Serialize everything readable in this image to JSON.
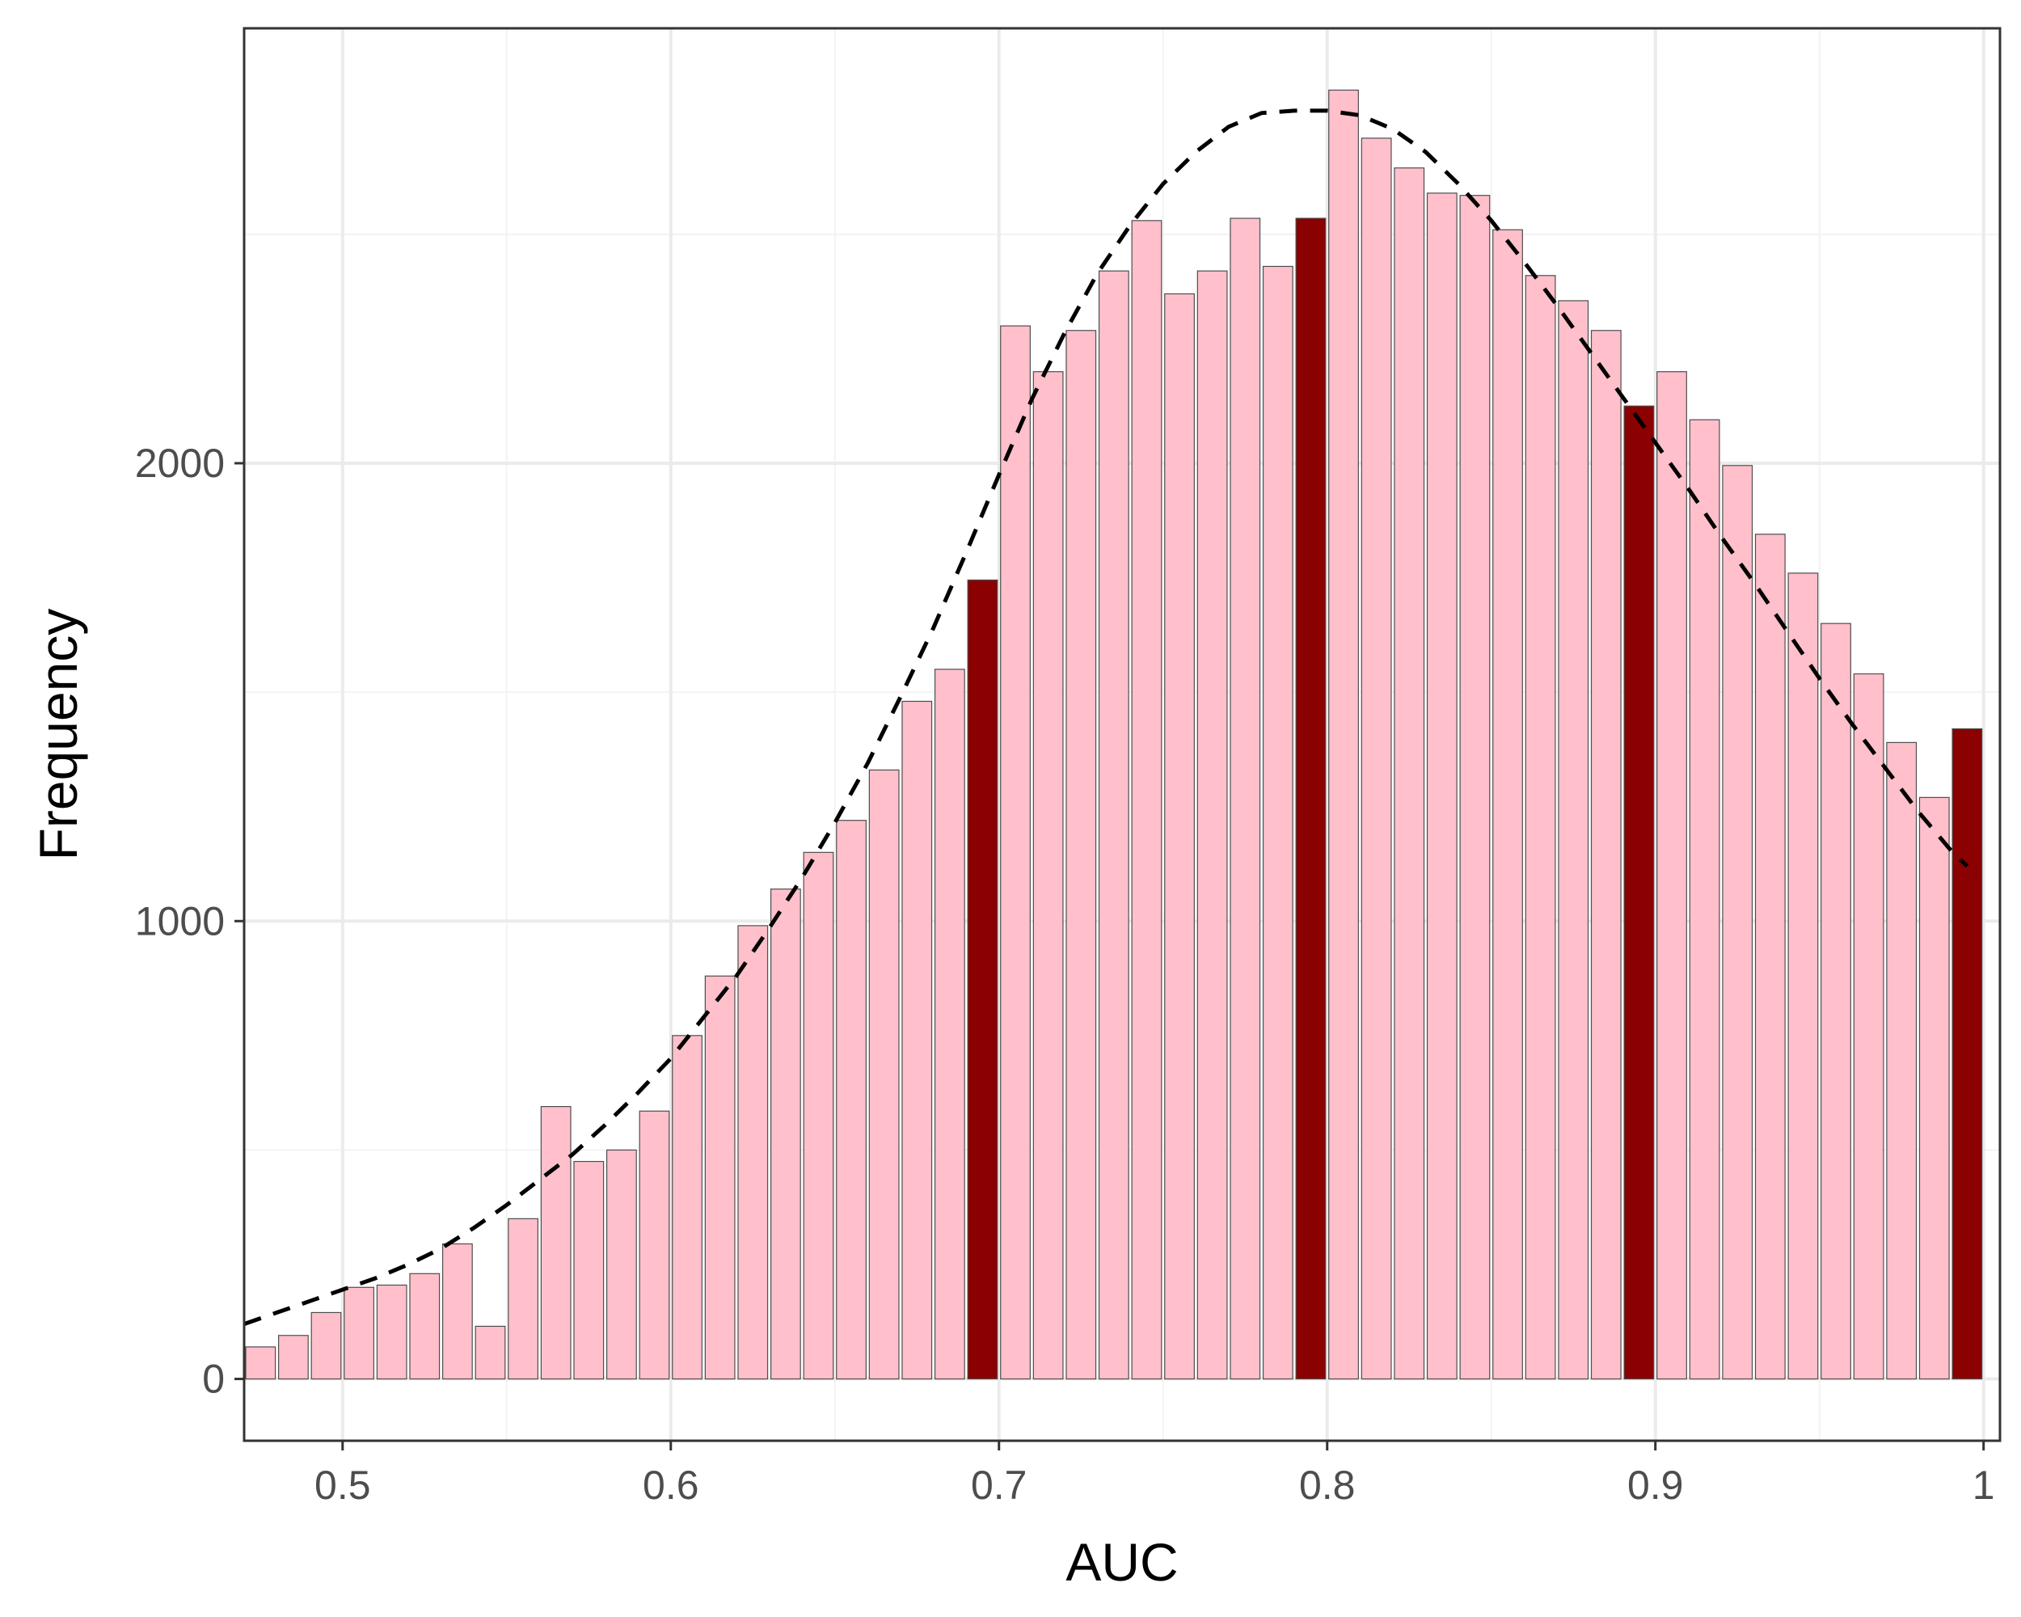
{
  "chart_data": {
    "type": "bar",
    "xlabel": "AUC",
    "ylabel": "Frequency",
    "xlim": [
      0.47,
      1.005
    ],
    "ylim": [
      -135,
      2950
    ],
    "x_ticks": [
      0.5,
      0.6,
      0.7,
      0.8,
      0.9,
      1.0
    ],
    "x_tick_labels": [
      "0.5",
      "0.6",
      "0.7",
      "0.8",
      "0.9",
      "1"
    ],
    "y_ticks": [
      0,
      1000,
      2000
    ],
    "y_tick_labels": [
      "0",
      "1000",
      "2000"
    ],
    "grid": true,
    "legend": "none",
    "bin_width": 0.01,
    "bins": [
      {
        "x": 0.475,
        "value": 70,
        "highlight": false
      },
      {
        "x": 0.485,
        "value": 95,
        "highlight": false
      },
      {
        "x": 0.495,
        "value": 145,
        "highlight": false
      },
      {
        "x": 0.505,
        "value": 200,
        "highlight": false
      },
      {
        "x": 0.515,
        "value": 205,
        "highlight": false
      },
      {
        "x": 0.525,
        "value": 230,
        "highlight": false
      },
      {
        "x": 0.535,
        "value": 295,
        "highlight": false
      },
      {
        "x": 0.545,
        "value": 115,
        "highlight": false
      },
      {
        "x": 0.555,
        "value": 350,
        "highlight": false
      },
      {
        "x": 0.565,
        "value": 595,
        "highlight": false
      },
      {
        "x": 0.575,
        "value": 475,
        "highlight": false
      },
      {
        "x": 0.585,
        "value": 500,
        "highlight": false
      },
      {
        "x": 0.595,
        "value": 585,
        "highlight": false
      },
      {
        "x": 0.605,
        "value": 750,
        "highlight": false
      },
      {
        "x": 0.615,
        "value": 880,
        "highlight": false
      },
      {
        "x": 0.625,
        "value": 990,
        "highlight": false
      },
      {
        "x": 0.635,
        "value": 1070,
        "highlight": false
      },
      {
        "x": 0.645,
        "value": 1150,
        "highlight": false
      },
      {
        "x": 0.655,
        "value": 1220,
        "highlight": false
      },
      {
        "x": 0.665,
        "value": 1330,
        "highlight": false
      },
      {
        "x": 0.675,
        "value": 1480,
        "highlight": false
      },
      {
        "x": 0.685,
        "value": 1550,
        "highlight": false
      },
      {
        "x": 0.695,
        "value": 1745,
        "highlight": true
      },
      {
        "x": 0.705,
        "value": 2300,
        "highlight": false
      },
      {
        "x": 0.715,
        "value": 2200,
        "highlight": false
      },
      {
        "x": 0.725,
        "value": 2290,
        "highlight": false
      },
      {
        "x": 0.735,
        "value": 2420,
        "highlight": false
      },
      {
        "x": 0.745,
        "value": 2530,
        "highlight": false
      },
      {
        "x": 0.755,
        "value": 2370,
        "highlight": false
      },
      {
        "x": 0.765,
        "value": 2420,
        "highlight": false
      },
      {
        "x": 0.775,
        "value": 2535,
        "highlight": false
      },
      {
        "x": 0.785,
        "value": 2430,
        "highlight": false
      },
      {
        "x": 0.795,
        "value": 2535,
        "highlight": true
      },
      {
        "x": 0.805,
        "value": 2815,
        "highlight": false
      },
      {
        "x": 0.815,
        "value": 2710,
        "highlight": false
      },
      {
        "x": 0.825,
        "value": 2645,
        "highlight": false
      },
      {
        "x": 0.835,
        "value": 2590,
        "highlight": false
      },
      {
        "x": 0.845,
        "value": 2585,
        "highlight": false
      },
      {
        "x": 0.855,
        "value": 2510,
        "highlight": false
      },
      {
        "x": 0.865,
        "value": 2410,
        "highlight": false
      },
      {
        "x": 0.875,
        "value": 2355,
        "highlight": false
      },
      {
        "x": 0.885,
        "value": 2290,
        "highlight": false
      },
      {
        "x": 0.895,
        "value": 2125,
        "highlight": true
      },
      {
        "x": 0.905,
        "value": 2200,
        "highlight": false
      },
      {
        "x": 0.915,
        "value": 2095,
        "highlight": false
      },
      {
        "x": 0.925,
        "value": 1995,
        "highlight": false
      },
      {
        "x": 0.935,
        "value": 1845,
        "highlight": false
      },
      {
        "x": 0.945,
        "value": 1760,
        "highlight": false
      },
      {
        "x": 0.955,
        "value": 1650,
        "highlight": false
      },
      {
        "x": 0.965,
        "value": 1540,
        "highlight": false
      },
      {
        "x": 0.975,
        "value": 1390,
        "highlight": false
      },
      {
        "x": 0.985,
        "value": 1270,
        "highlight": false
      },
      {
        "x": 0.995,
        "value": 1420,
        "highlight": true
      }
    ],
    "density_curve": {
      "style": "dashed",
      "x": [
        0.47,
        0.48,
        0.49,
        0.5,
        0.51,
        0.52,
        0.53,
        0.54,
        0.55,
        0.56,
        0.57,
        0.58,
        0.59,
        0.6,
        0.61,
        0.62,
        0.63,
        0.64,
        0.65,
        0.66,
        0.67,
        0.68,
        0.69,
        0.7,
        0.71,
        0.72,
        0.73,
        0.74,
        0.75,
        0.76,
        0.77,
        0.78,
        0.79,
        0.8,
        0.81,
        0.82,
        0.83,
        0.84,
        0.85,
        0.86,
        0.87,
        0.88,
        0.89,
        0.9,
        0.91,
        0.92,
        0.93,
        0.94,
        0.95,
        0.96,
        0.97,
        0.98,
        0.99,
        0.995
      ],
      "y": [
        120,
        145,
        170,
        195,
        220,
        250,
        285,
        330,
        380,
        435,
        490,
        555,
        625,
        700,
        790,
        880,
        985,
        1095,
        1215,
        1345,
        1490,
        1640,
        1805,
        1975,
        2140,
        2285,
        2415,
        2520,
        2610,
        2680,
        2735,
        2765,
        2770,
        2770,
        2760,
        2730,
        2680,
        2610,
        2530,
        2440,
        2345,
        2245,
        2145,
        2045,
        1945,
        1840,
        1740,
        1635,
        1530,
        1430,
        1335,
        1240,
        1155,
        1120
      ]
    },
    "colors": {
      "bar_fill": "#ffc0cb",
      "bar_highlight": "#8b0000",
      "bar_stroke": "#4d4d4d",
      "curve": "#000000",
      "grid_major": "#ebebeb",
      "grid_minor": "#f3f3f3",
      "panel_border": "#333333",
      "tick_text": "#4d4d4d"
    }
  }
}
